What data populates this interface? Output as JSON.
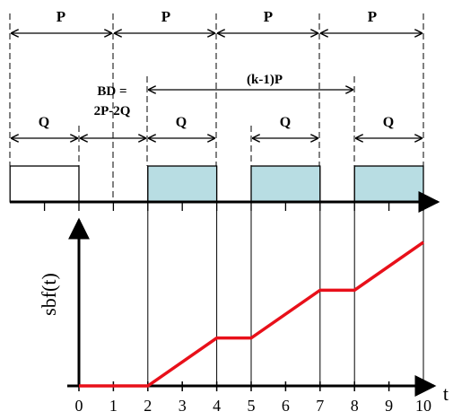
{
  "title": "",
  "top_labels": {
    "period": "P",
    "budget": "Q",
    "blackout_line1": "BD =",
    "blackout_line2": "2P-2Q",
    "span": "(k-1)P"
  },
  "axis": {
    "y_label": "sbf(t)",
    "x_label": "t",
    "ticks": [
      "0",
      "1",
      "2",
      "3",
      "4",
      "5",
      "6",
      "7",
      "8",
      "9",
      "10"
    ]
  },
  "colors": {
    "supply_fill": "#b8dde3",
    "curve": "#e8101a",
    "stroke": "#000000"
  },
  "chart_data": {
    "type": "line",
    "series": [
      {
        "name": "",
        "x": [
          0,
          2,
          4,
          5,
          7,
          8,
          10
        ],
        "y": [
          0,
          0,
          2,
          2,
          4,
          4,
          6
        ]
      }
    ],
    "xlim": [
      0,
      10
    ],
    "supply_intervals": [
      [
        -2,
        0
      ],
      [
        2,
        4
      ],
      [
        5,
        7
      ],
      [
        8,
        10
      ]
    ],
    "highlighted_intervals": [
      [
        2,
        4
      ],
      [
        5,
        7
      ],
      [
        8,
        10
      ]
    ]
  }
}
